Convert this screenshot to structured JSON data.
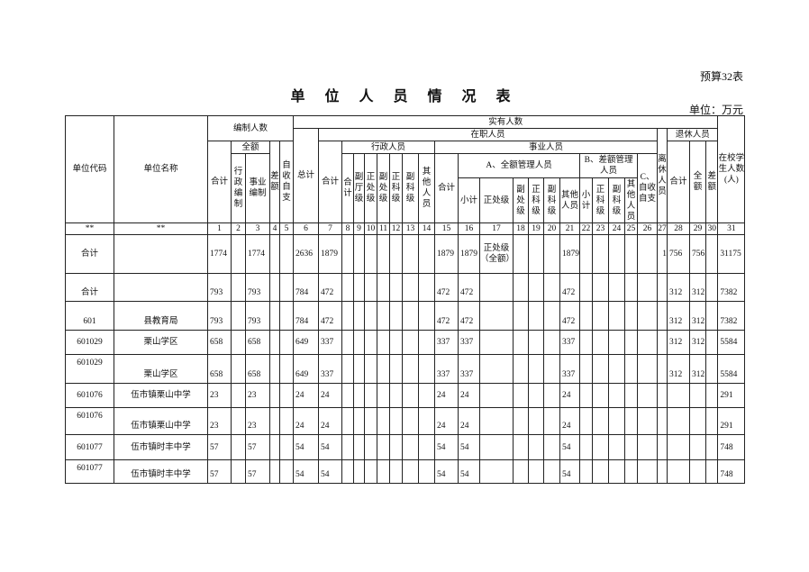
{
  "form_no": "预算32表",
  "title": "单 位 人 员 情 况 表",
  "unit": "单位：万元",
  "header": {
    "code": "单位代码",
    "name": "单位名称",
    "staffing": "编制人数",
    "staffing_total": "合计",
    "full": "全额",
    "admin_staffing": "行政编制",
    "inst_staffing": "事业编制",
    "diff": "差额",
    "self": "自收自支",
    "actual": "实有人数",
    "grand_total": "总计",
    "on_duty": "在职人员",
    "retired_early": "离休人员",
    "retired": "退休人员",
    "duty_total": "合计",
    "admin": "行政人员",
    "institution": "事业人员",
    "ret_total": "合计",
    "ret_full": "全额",
    "ret_diff": "差额",
    "students": "在校学生人数(人)",
    "admin_total": "合计",
    "dep_dept": "副厅级",
    "div_head": "正处级",
    "dep_div": "副处级",
    "sec_head": "正科级",
    "dep_sec": "副科级",
    "admin_other": "其他人员",
    "inst_total": "合计",
    "group_a": "A、全额管理人员",
    "group_b": "B、差额管理人员",
    "group_c": "C、自收自支",
    "a_sub": "小计",
    "a_div": "正处级",
    "a_depdiv": "副处级",
    "a_sec": "正科级",
    "a_depsec": "副科级",
    "a_other": "其他人员",
    "b_sub": "小计",
    "b_sec": "正科级",
    "b_depsec": "副科级",
    "b_other": "其他人员",
    "index_code": "**",
    "index_name": "**",
    "index_numbers": [
      "1",
      "2",
      "3",
      "4",
      "5",
      "6",
      "7",
      "8",
      "9",
      "10",
      "11",
      "12",
      "13",
      "14",
      "15",
      "16",
      "17",
      "18",
      "19",
      "20",
      "21",
      "22",
      "23",
      "24",
      "25",
      "26",
      "27",
      "28",
      "29",
      "30",
      "31"
    ]
  },
  "rows": [
    {
      "code": "合计",
      "name": "",
      "values": [
        "1774",
        "",
        "1774",
        "",
        "",
        "2636",
        "1879",
        "",
        "",
        "",
        "",
        "",
        "",
        "",
        "1879",
        "1879",
        "正处级（全额）",
        "",
        "",
        "",
        "1879",
        "",
        "",
        "",
        "",
        "",
        "1",
        "756",
        "756",
        "",
        "31175"
      ]
    },
    {
      "code": "合计",
      "name": "",
      "values": [
        "793",
        "",
        "793",
        "",
        "",
        "784",
        "472",
        "",
        "",
        "",
        "",
        "",
        "",
        "",
        "472",
        "472",
        "",
        "",
        "",
        "",
        "472",
        "",
        "",
        "",
        "",
        "",
        "",
        "312",
        "312",
        "",
        "7382"
      ]
    },
    {
      "code": "601",
      "name": "县教育局",
      "values": [
        "793",
        "",
        "793",
        "",
        "",
        "784",
        "472",
        "",
        "",
        "",
        "",
        "",
        "",
        "",
        "472",
        "472",
        "",
        "",
        "",
        "",
        "472",
        "",
        "",
        "",
        "",
        "",
        "",
        "312",
        "312",
        "",
        "7382"
      ]
    },
    {
      "code": "601029",
      "name": "栗山学区",
      "values": [
        "658",
        "",
        "658",
        "",
        "",
        "649",
        "337",
        "",
        "",
        "",
        "",
        "",
        "",
        "",
        "337",
        "337",
        "",
        "",
        "",
        "",
        "337",
        "",
        "",
        "",
        "",
        "",
        "",
        "312",
        "312",
        "",
        "5584"
      ]
    },
    {
      "code": "601029",
      "name": "栗山学区",
      "values": [
        "658",
        "",
        "658",
        "",
        "",
        "649",
        "337",
        "",
        "",
        "",
        "",
        "",
        "",
        "",
        "337",
        "337",
        "",
        "",
        "",
        "",
        "337",
        "",
        "",
        "",
        "",
        "",
        "",
        "312",
        "312",
        "",
        "5584"
      ]
    },
    {
      "code": "601076",
      "name": "伍市镇栗山中学",
      "values": [
        "23",
        "",
        "23",
        "",
        "",
        "24",
        "24",
        "",
        "",
        "",
        "",
        "",
        "",
        "",
        "24",
        "24",
        "",
        "",
        "",
        "",
        "24",
        "",
        "",
        "",
        "",
        "",
        "",
        "",
        "",
        "",
        "291"
      ]
    },
    {
      "code": "601076",
      "name": "伍市镇栗山中学",
      "values": [
        "23",
        "",
        "23",
        "",
        "",
        "24",
        "24",
        "",
        "",
        "",
        "",
        "",
        "",
        "",
        "24",
        "24",
        "",
        "",
        "",
        "",
        "24",
        "",
        "",
        "",
        "",
        "",
        "",
        "",
        "",
        "",
        "291"
      ]
    },
    {
      "code": "601077",
      "name": "伍市镇时丰中学",
      "values": [
        "57",
        "",
        "57",
        "",
        "",
        "54",
        "54",
        "",
        "",
        "",
        "",
        "",
        "",
        "",
        "54",
        "54",
        "",
        "",
        "",
        "",
        "54",
        "",
        "",
        "",
        "",
        "",
        "",
        "",
        "",
        "",
        "748"
      ]
    },
    {
      "code": "601077",
      "name": "伍市镇时丰中学",
      "values": [
        "57",
        "",
        "57",
        "",
        "",
        "54",
        "54",
        "",
        "",
        "",
        "",
        "",
        "",
        "",
        "54",
        "54",
        "",
        "",
        "",
        "",
        "54",
        "",
        "",
        "",
        "",
        "",
        "",
        "",
        "",
        "",
        "748"
      ]
    }
  ]
}
